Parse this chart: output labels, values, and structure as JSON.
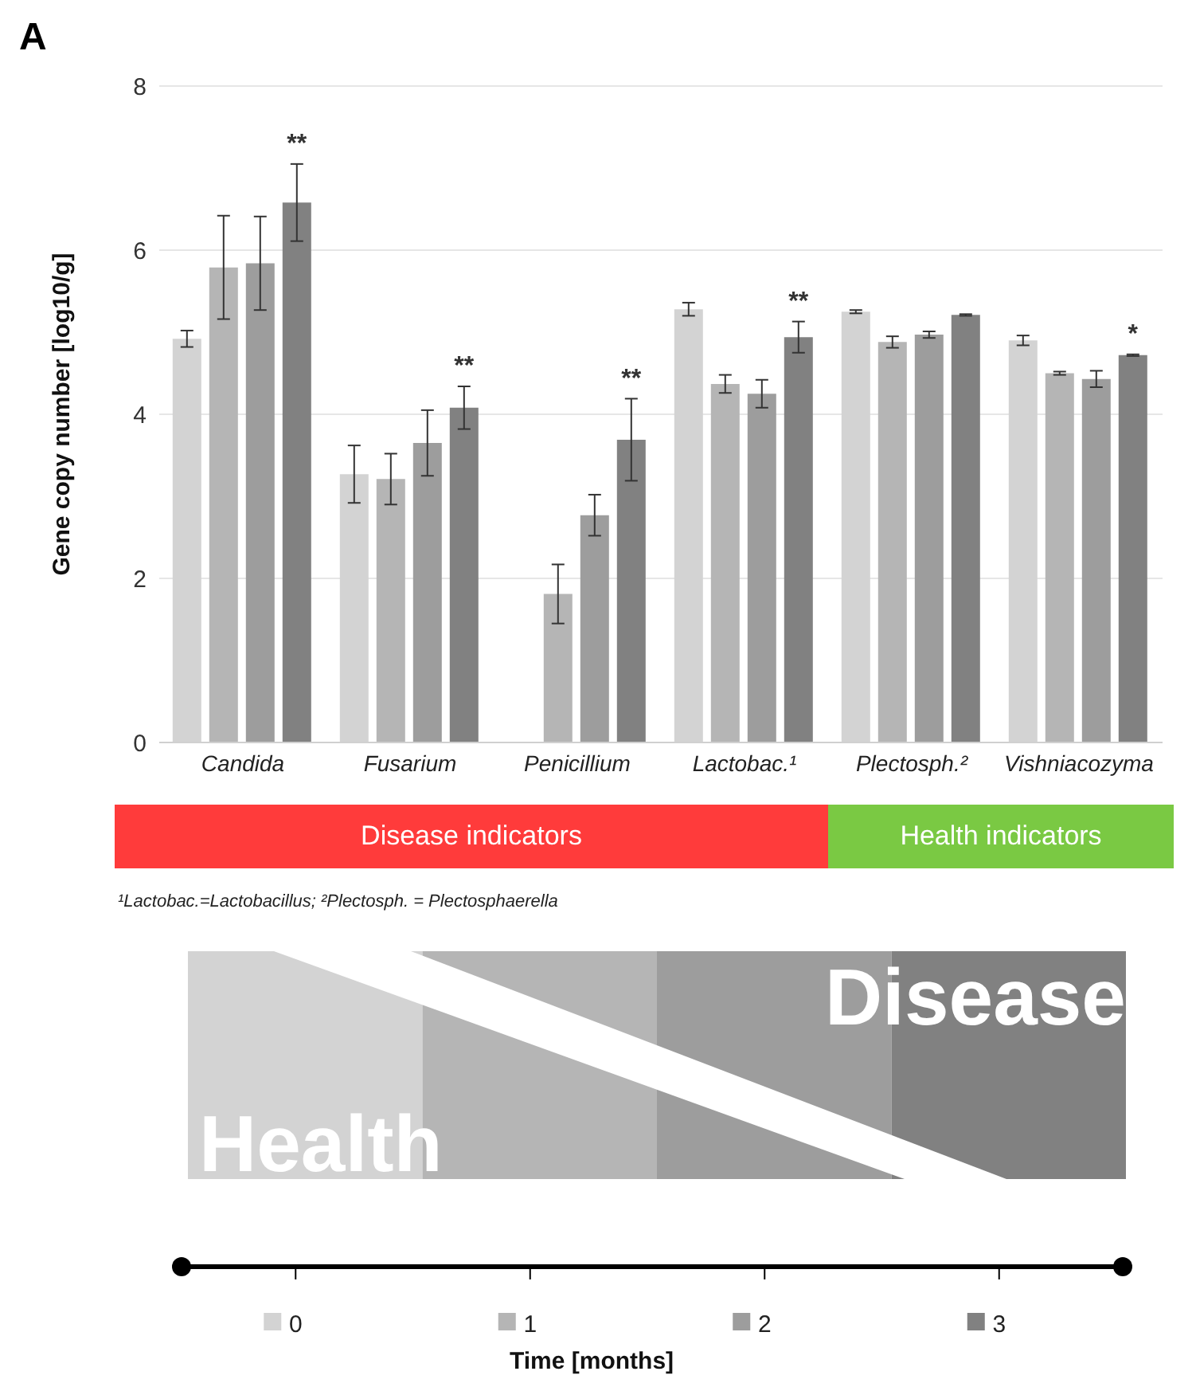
{
  "chart_data": {
    "type": "bar",
    "title": "A",
    "ylabel": "Gene copy number [log10/g]",
    "legend_title": "Time [months]",
    "categories": [
      "Candida",
      "Fusarium",
      "Penicillium",
      "Lactobac.¹",
      "Plectosph.²",
      "Vishniacozyma"
    ],
    "series": [
      {
        "name": "0",
        "color": "#d3d3d3",
        "values": [
          4.92,
          3.27,
          null,
          5.28,
          5.25,
          4.9
        ],
        "errors": [
          0.1,
          0.35,
          null,
          0.08,
          0.02,
          0.06
        ]
      },
      {
        "name": "1",
        "color": "#b5b5b5",
        "values": [
          5.79,
          3.21,
          1.81,
          4.37,
          4.88,
          4.5
        ],
        "errors": [
          0.63,
          0.31,
          0.36,
          0.11,
          0.07,
          0.02
        ]
      },
      {
        "name": "2",
        "color": "#9d9d9d",
        "values": [
          5.84,
          3.65,
          2.77,
          4.25,
          4.97,
          4.43
        ],
        "errors": [
          0.57,
          0.4,
          0.25,
          0.17,
          0.04,
          0.1
        ]
      },
      {
        "name": "3",
        "color": "#818181",
        "values": [
          6.58,
          4.08,
          3.69,
          4.94,
          5.21,
          4.72
        ],
        "errors": [
          0.47,
          0.26,
          0.5,
          0.19,
          0.01,
          0.01
        ],
        "value_labels": [
          "**",
          "**",
          "**",
          "**",
          null,
          "*"
        ]
      }
    ],
    "ylim": [
      0,
      8
    ],
    "yticks": [
      0,
      2,
      4,
      6,
      8
    ],
    "grid": "y",
    "legend": "bottom",
    "annotations": [
      "Disease indicators",
      "Health indicators",
      "¹Lactobac.=Lactobacillus; ²Plectosph. = Plectosphaerella",
      "Health",
      "Disease"
    ]
  }
}
